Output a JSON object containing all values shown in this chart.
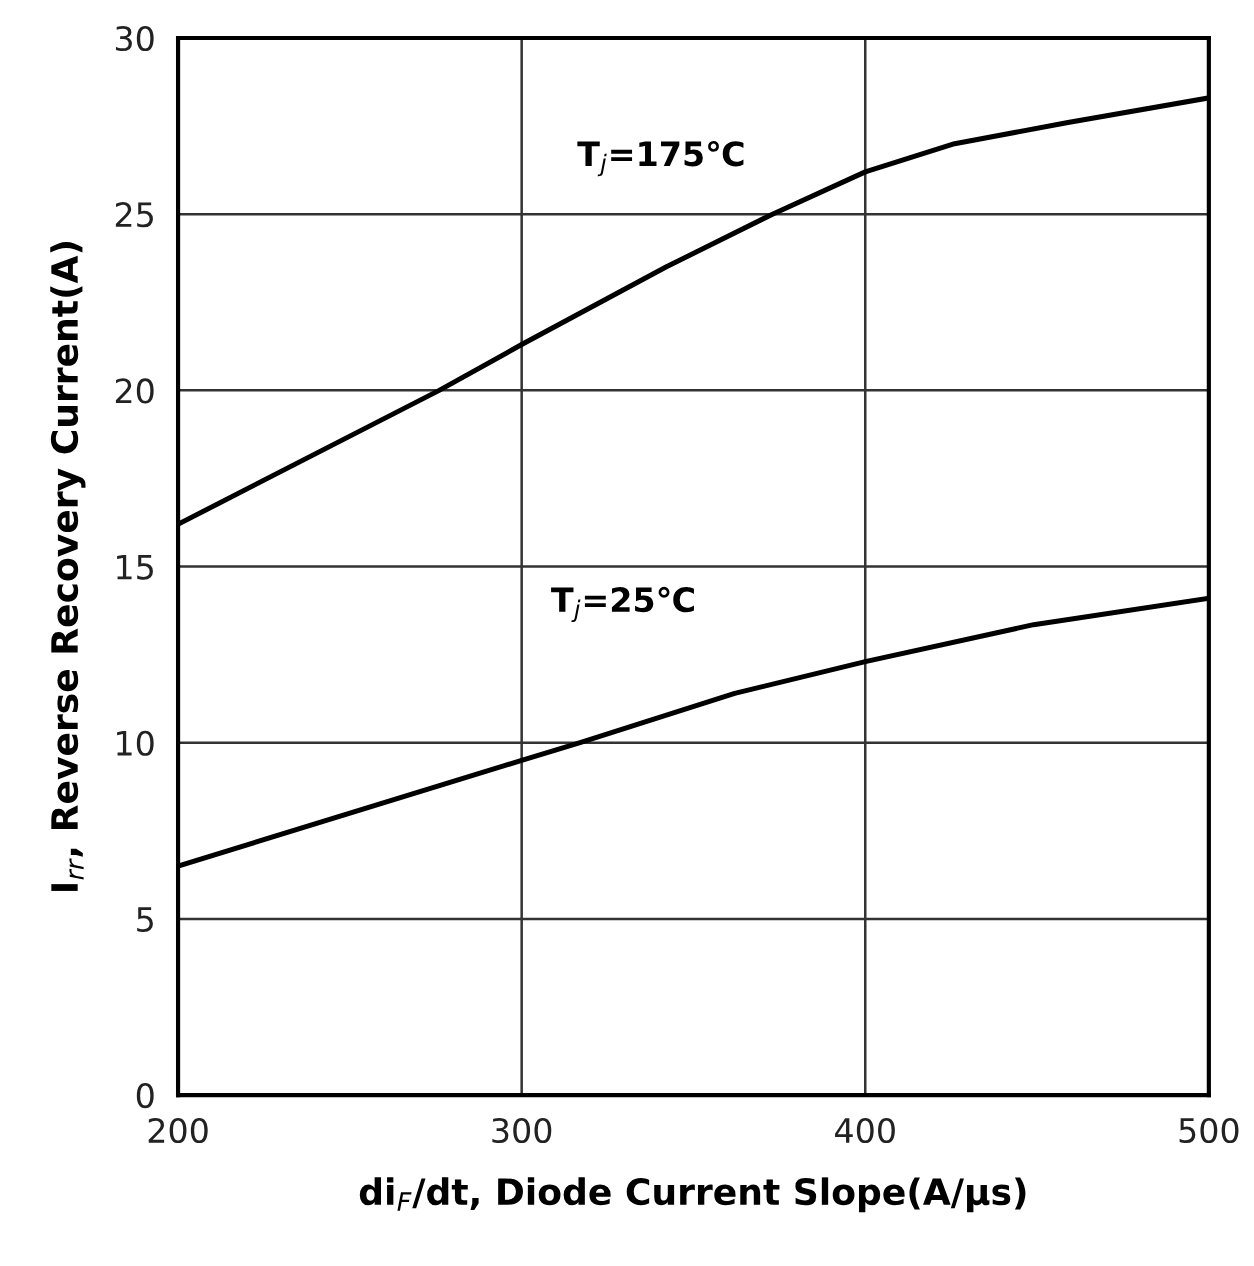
{
  "chart_data": {
    "type": "line",
    "xlabel": "di$_{F}$/dt, Diode Current Slope(A/μs)",
    "ylabel": "I$_{rr}$, Reverse Recovery Current(A)",
    "xlim": [
      200,
      500
    ],
    "xticks": [
      200,
      300,
      400,
      500
    ],
    "ylim": [
      0,
      30
    ],
    "yticks": [
      0,
      5,
      10,
      15,
      20,
      25,
      30
    ],
    "grid": true,
    "marker": "none",
    "line_style": "solid",
    "series": [
      {
        "color": "#000000",
        "x": [
          200,
          276,
          300,
          342,
          373,
          400,
          426,
          459,
          500
        ],
        "values": [
          16.2,
          20.0,
          21.3,
          23.5,
          25.0,
          26.2,
          27.0,
          27.6,
          28.3
        ]
      },
      {
        "color": "#000000",
        "x": [
          200,
          300,
          317,
          362,
          400,
          449,
          500
        ],
        "values": [
          6.5,
          9.5,
          10.0,
          11.4,
          12.3,
          13.35,
          14.1
        ]
      }
    ],
    "annotations": [
      "T$_{j}$=175℃",
      "T$_{j}$=25℃"
    ]
  }
}
